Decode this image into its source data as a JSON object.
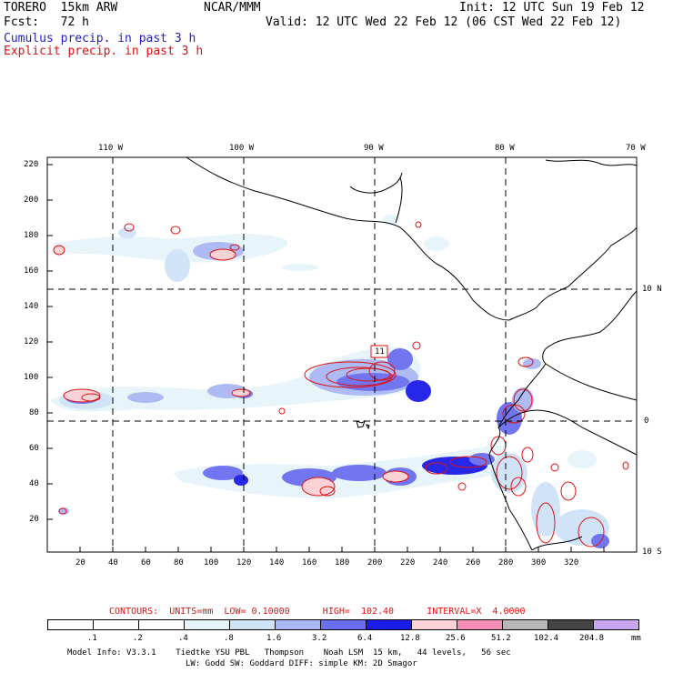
{
  "header": {
    "model": "TORERO  15km ARW",
    "org": "NCAR/MMM",
    "init": "Init: 12 UTC Sun 19 Feb 12",
    "fcst": "Fcst:   72 h",
    "valid": "Valid: 12 UTC Wed 22 Feb 12 (06 CST Wed 22 Feb 12)",
    "cumulus": "Cumulus precip. in past 3 h",
    "explicit": "Explicit precip. in past 3 h"
  },
  "axes": {
    "top_labels": [
      "110 W",
      "100 W",
      "90 W",
      "80 W",
      "70 W"
    ],
    "right_labels": [
      "10 N",
      "0",
      "10 S"
    ],
    "y_ticks": [
      "220",
      "200",
      "180",
      "160",
      "140",
      "120",
      "100",
      "80",
      "60",
      "40",
      "20"
    ],
    "x_ticks": [
      "20",
      "40",
      "60",
      "80",
      "100",
      "120",
      "140",
      "160",
      "180",
      "200",
      "220",
      "240",
      "260",
      "280",
      "300",
      "320"
    ]
  },
  "annotation": {
    "max_label": "11"
  },
  "contours": {
    "text": "CONTOURS:  UNITS=mm  LOW= 0.10000      HIGH=  102.40      INTERVAL=X  4.0000"
  },
  "legend": {
    "values": [
      ".1",
      ".2",
      ".4",
      ".8",
      "1.6",
      "3.2",
      "6.4",
      "12.8",
      "25.6",
      "51.2",
      "102.4",
      "204.8"
    ],
    "unit": "mm",
    "colors": [
      "#ffffff",
      "#ffffff",
      "#ffffff",
      "#e6f4fa",
      "#cfe3f7",
      "#a9b7f3",
      "#6a6ef0",
      "#1c1ce8",
      "#fbd2d5",
      "#f58fb8",
      "#b7b7b7",
      "#444444",
      "#c9a6f2"
    ]
  },
  "footer": {
    "line1": "Model Info: V3.3.1    Tiedtke YSU PBL   Thompson    Noah LSM  15 km,   44 levels,   56 sec",
    "line2": "LW: Godd SW: Goddard DIFF: simple KM: 2D Smagor"
  }
}
